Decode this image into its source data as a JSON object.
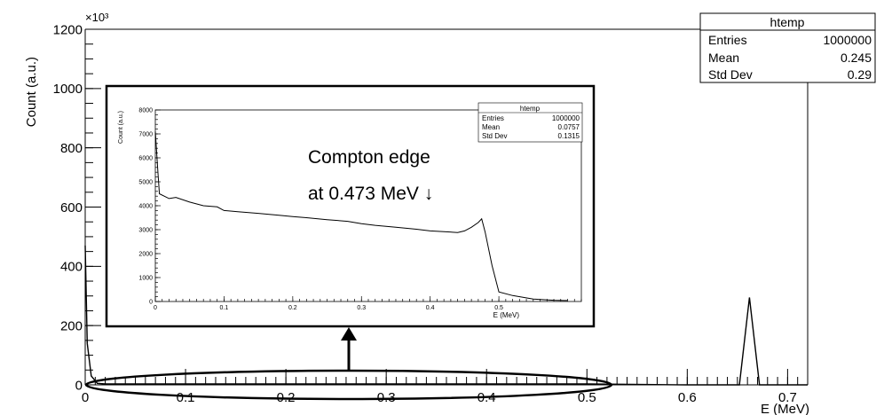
{
  "chart_data": [
    {
      "type": "line",
      "ylabel": "Count (a.u.)",
      "xlabel": "E (MeV)",
      "y_multiplier": "×10³",
      "xlim": [
        0,
        0.72
      ],
      "ylim": [
        0,
        1200
      ],
      "x_ticks": [
        0,
        0.1,
        0.2,
        0.3,
        0.4,
        0.5,
        0.6,
        0.7
      ],
      "x_tick_labels": [
        "0",
        "0.1",
        "0.2",
        "0.3",
        "0.4",
        "0.5",
        "0.6",
        "0.7"
      ],
      "y_ticks": [
        0,
        200,
        400,
        600,
        800,
        1000,
        1200
      ],
      "y_tick_labels": [
        "0",
        "200",
        "400",
        "600",
        "800",
        "1000",
        "1200"
      ],
      "x": [
        0,
        0.002,
        0.006,
        0.012,
        0.02,
        0.1,
        0.2,
        0.3,
        0.4,
        0.5,
        0.6,
        0.64,
        0.652,
        0.662,
        0.672,
        0.7,
        0.72
      ],
      "y": [
        470,
        140,
        30,
        5,
        3,
        3,
        3,
        3,
        3,
        3,
        0,
        0,
        0,
        295,
        0,
        0,
        0
      ],
      "stats_box": {
        "title": "htemp",
        "rows": [
          {
            "label": "Entries",
            "value": "1000000"
          },
          {
            "label": "Mean",
            "value": "0.245"
          },
          {
            "label": "Std Dev",
            "value": "0.29"
          }
        ]
      },
      "grid": false,
      "annotation_shape": "ellipse around the low-energy region near the x axis",
      "arrow": "points up from the ellipse to the inset"
    },
    {
      "type": "line",
      "ylabel": "Count (a.u.)",
      "xlabel": "E (MeV)",
      "xlim": [
        0,
        0.62
      ],
      "ylim": [
        0,
        8000
      ],
      "x_ticks": [
        0,
        0.1,
        0.2,
        0.3,
        0.4,
        0.5
      ],
      "x_tick_labels": [
        "0",
        "0.1",
        "0.2",
        "0.3",
        "0.4",
        "0.5"
      ],
      "y_ticks": [
        0,
        1000,
        2000,
        3000,
        4000,
        5000,
        6000,
        7000,
        8000
      ],
      "y_tick_labels": [
        "0",
        "1000",
        "2000",
        "3000",
        "4000",
        "5000",
        "6000",
        "7000",
        "8000"
      ],
      "x": [
        0,
        0.004,
        0.006,
        0.02,
        0.03,
        0.05,
        0.07,
        0.09,
        0.1,
        0.12,
        0.15,
        0.18,
        0.2,
        0.22,
        0.25,
        0.28,
        0.3,
        0.32,
        0.35,
        0.38,
        0.4,
        0.42,
        0.44,
        0.45,
        0.46,
        0.47,
        0.475,
        0.48,
        0.49,
        0.5,
        0.52,
        0.55,
        0.58,
        0.6
      ],
      "y": [
        7100,
        5300,
        4500,
        4300,
        4350,
        4150,
        4000,
        3950,
        3800,
        3750,
        3680,
        3600,
        3550,
        3500,
        3420,
        3350,
        3250,
        3180,
        3100,
        3020,
        2950,
        2920,
        2880,
        2950,
        3100,
        3300,
        3450,
        2900,
        1500,
        400,
        250,
        100,
        50,
        40
      ],
      "stats_box": {
        "title": "htemp",
        "rows": [
          {
            "label": "Entries",
            "value": "1000000"
          },
          {
            "label": "Mean",
            "value": "0.0757"
          },
          {
            "label": "Std Dev",
            "value": "0.1315"
          }
        ]
      },
      "annotation": {
        "line1": "Compton edge",
        "line2": "at 0.473 MeV ↓"
      },
      "grid": false
    }
  ]
}
